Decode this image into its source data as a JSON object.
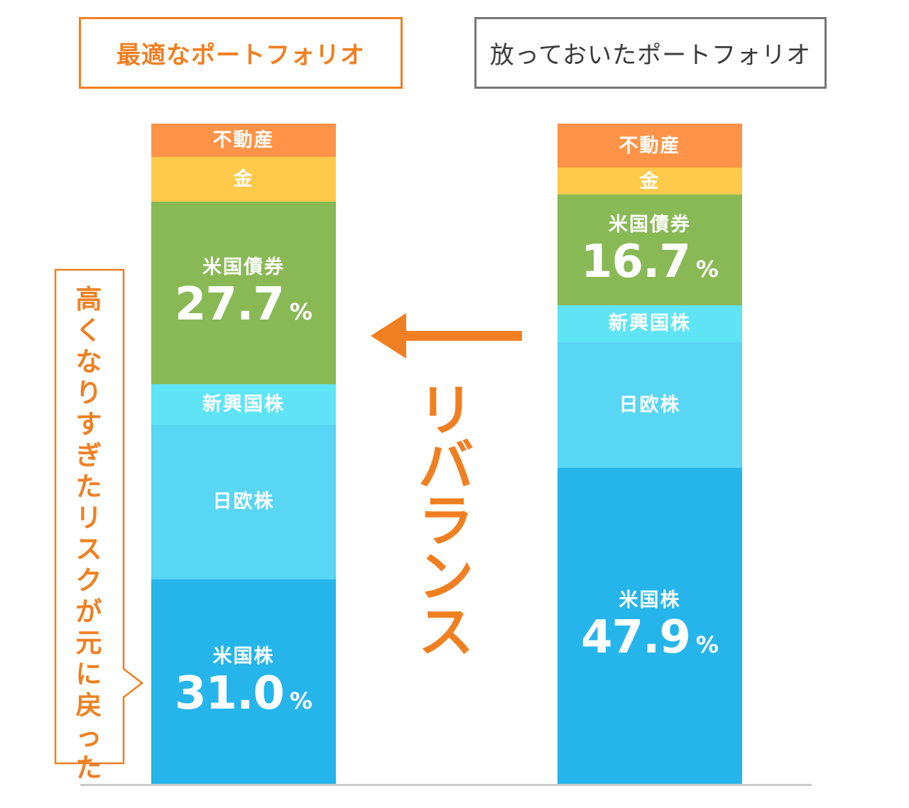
{
  "chart_data": {
    "type": "stacked-bar",
    "bars": [
      {
        "name": "最適なポートフォリオ",
        "segments": [
          {
            "label": "米国株",
            "percent": "31.0",
            "pct_sign": "%",
            "value": 31.0,
            "color": "#26b5ea"
          },
          {
            "label": "日欧株",
            "value": 23.4,
            "color": "#58d6f3"
          },
          {
            "label": "新興国株",
            "value": 6.1,
            "color": "#5fe4f6"
          },
          {
            "label": "米国債券",
            "percent": "27.7",
            "pct_sign": "%",
            "value": 27.7,
            "color": "#89b955"
          },
          {
            "label": "金",
            "value": 6.8,
            "color": "#ffc94a"
          },
          {
            "label": "不動産",
            "value": 5.0,
            "color": "#ff9347"
          }
        ]
      },
      {
        "name": "放っておいたポートフォリオ",
        "segments": [
          {
            "label": "米国株",
            "percent": "47.9",
            "pct_sign": "%",
            "value": 47.9,
            "color": "#26b5ea"
          },
          {
            "label": "日欧株",
            "value": 19.0,
            "color": "#58d6f3"
          },
          {
            "label": "新興国株",
            "value": 5.6,
            "color": "#5fe4f6"
          },
          {
            "label": "米国債券",
            "percent": "16.7",
            "pct_sign": "%",
            "value": 16.7,
            "color": "#89b955"
          },
          {
            "label": "金",
            "value": 4.1,
            "color": "#ffc94a"
          },
          {
            "label": "不動産",
            "value": 6.7,
            "color": "#ff9347"
          }
        ]
      }
    ],
    "accent_color": "#f07f21"
  },
  "titles": {
    "left": "最適なポートフォリオ",
    "right": "放っておいたポートフォリオ"
  },
  "annotations": {
    "rebalance": "リバランス",
    "callout": "高くなりすぎたリスクが元に戻った"
  }
}
